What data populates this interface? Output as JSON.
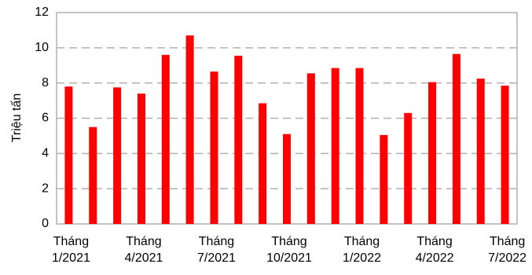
{
  "chart_data": {
    "type": "bar",
    "y_label": "Triệu tấn",
    "categories": [
      "Tháng 1/2021",
      null,
      null,
      "Tháng 4/2021",
      null,
      null,
      "Tháng 7/2021",
      null,
      null,
      "Tháng 10/2021",
      null,
      null,
      "Tháng 1/2022",
      null,
      null,
      "Tháng 4/2022",
      null,
      null,
      "Tháng 7/2022"
    ],
    "values": [
      7.8,
      5.5,
      7.75,
      7.4,
      9.6,
      10.7,
      8.65,
      9.55,
      6.85,
      5.1,
      8.55,
      8.85,
      8.85,
      5.05,
      6.3,
      8.05,
      9.65,
      8.25,
      7.85
    ],
    "color": "#ff0000",
    "ylim": [
      0,
      12
    ],
    "yticks": [
      0,
      2,
      4,
      6,
      8,
      10,
      12
    ],
    "grid": true
  }
}
